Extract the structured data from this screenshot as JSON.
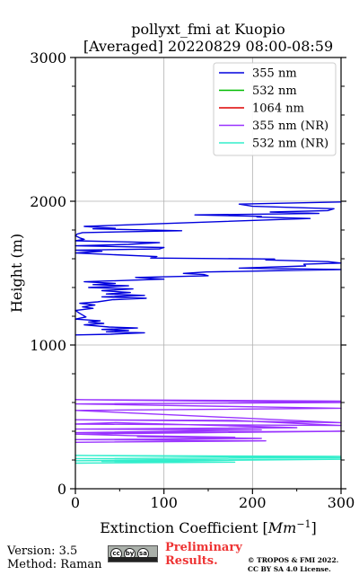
{
  "chart_data": {
    "type": "line",
    "title_line1": "pollyxt_fmi at Kuopio",
    "title_line2": "[Averaged] 20220829 08:00-08:59",
    "xlabel_main": "Extinction Coefficient [",
    "xlabel_unit": "Mm",
    "xlabel_exp": "−1",
    "xlabel_close": "]",
    "ylabel": "Height (m)",
    "xlim": [
      0,
      300
    ],
    "ylim": [
      0,
      3000
    ],
    "x_ticks": [
      "0",
      "100",
      "200",
      "300"
    ],
    "y_ticks": [
      "0",
      "1000",
      "2000",
      "3000"
    ],
    "grid": true,
    "legend_position": "top-right",
    "series": [
      {
        "name": "355 nm",
        "color": "#0000dd",
        "points": [
          [
            0,
            1070
          ],
          [
            40,
            1075
          ],
          [
            78,
            1085
          ],
          [
            35,
            1092
          ],
          [
            60,
            1100
          ],
          [
            30,
            1108
          ],
          [
            70,
            1118
          ],
          [
            38,
            1125
          ],
          [
            10,
            1140
          ],
          [
            32,
            1150
          ],
          [
            15,
            1160
          ],
          [
            28,
            1168
          ],
          [
            0,
            1180
          ],
          [
            12,
            1195
          ],
          [
            5,
            1220
          ],
          [
            0,
            1240
          ],
          [
            20,
            1255
          ],
          [
            8,
            1265
          ],
          [
            22,
            1278
          ],
          [
            5,
            1290
          ],
          [
            25,
            1300
          ],
          [
            42,
            1315
          ],
          [
            80,
            1325
          ],
          [
            30,
            1335
          ],
          [
            78,
            1345
          ],
          [
            35,
            1355
          ],
          [
            62,
            1365
          ],
          [
            30,
            1378
          ],
          [
            65,
            1390
          ],
          [
            15,
            1400
          ],
          [
            60,
            1412
          ],
          [
            20,
            1420
          ],
          [
            45,
            1428
          ],
          [
            10,
            1440
          ],
          [
            100,
            1458
          ],
          [
            68,
            1470
          ],
          [
            150,
            1482
          ],
          [
            145,
            1490
          ],
          [
            122,
            1498
          ],
          [
            148,
            1508
          ],
          [
            300,
            1525
          ],
          [
            185,
            1535
          ],
          [
            260,
            1550
          ],
          [
            258,
            1562
          ],
          [
            300,
            1570
          ],
          [
            285,
            1580
          ],
          [
            215,
            1592
          ],
          [
            225,
            1598
          ],
          [
            85,
            1605
          ],
          [
            92,
            1615
          ],
          [
            0,
            1640
          ],
          [
            30,
            1652
          ],
          [
            0,
            1660
          ],
          [
            95,
            1668
          ],
          [
            100,
            1678
          ],
          [
            0,
            1690
          ],
          [
            60,
            1700
          ],
          [
            95,
            1712
          ],
          [
            0,
            1725
          ],
          [
            10,
            1735
          ],
          [
            5,
            1745
          ],
          [
            0,
            1760
          ],
          [
            2,
            1772
          ],
          [
            8,
            1782
          ],
          [
            120,
            1795
          ],
          [
            20,
            1808
          ],
          [
            45,
            1812
          ],
          [
            22,
            1820
          ],
          [
            10,
            1825
          ],
          [
            100,
            1845
          ],
          [
            265,
            1880
          ],
          [
            205,
            1890
          ],
          [
            210,
            1895
          ],
          [
            135,
            1905
          ],
          [
            275,
            1915
          ],
          [
            220,
            1925
          ],
          [
            285,
            1935
          ],
          [
            292,
            1948
          ],
          [
            200,
            1965
          ],
          [
            185,
            1980
          ],
          [
            300,
            1995
          ]
        ]
      },
      {
        "name": "532 nm",
        "color": "#00bb00",
        "points": []
      },
      {
        "name": "1064 nm",
        "color": "#dd0000",
        "points": []
      },
      {
        "name": "355 nm (NR)",
        "color": "#9933ff",
        "points": [
          [
            300,
            610
          ],
          [
            0,
            620
          ],
          [
            300,
            600
          ],
          [
            0,
            590
          ],
          [
            300,
            560
          ],
          [
            0,
            545
          ],
          [
            300,
            460
          ],
          [
            190,
            470
          ],
          [
            0,
            480
          ],
          [
            180,
            475
          ],
          [
            300,
            440
          ],
          [
            0,
            450
          ],
          [
            45,
            460
          ],
          [
            250,
            425
          ],
          [
            0,
            415
          ],
          [
            210,
            410
          ],
          [
            0,
            390
          ],
          [
            300,
            400
          ],
          [
            0,
            380
          ],
          [
            60,
            370
          ],
          [
            180,
            358
          ],
          [
            70,
            362
          ],
          [
            210,
            350
          ],
          [
            0,
            342
          ],
          [
            215,
            333
          ],
          [
            0,
            323
          ]
        ]
      },
      {
        "name": "532 nm (NR)",
        "color": "#33eecc",
        "points": [
          [
            300,
            225
          ],
          [
            0,
            232
          ],
          [
            300,
            215
          ],
          [
            0,
            210
          ],
          [
            185,
            200
          ],
          [
            0,
            195
          ],
          [
            300,
            205
          ],
          [
            30,
            190
          ],
          [
            180,
            185
          ],
          [
            0,
            178
          ]
        ]
      }
    ]
  },
  "footer": {
    "version": "Version: 3.5",
    "method": "Method: Raman",
    "license_badge": [
      "cc",
      "by",
      "sa"
    ],
    "preliminary_line1": "Preliminary",
    "preliminary_line2": "Results.",
    "copyright_line1": "© TROPOS & FMI 2022.",
    "copyright_line2": "CC BY SA 4.0 License."
  }
}
